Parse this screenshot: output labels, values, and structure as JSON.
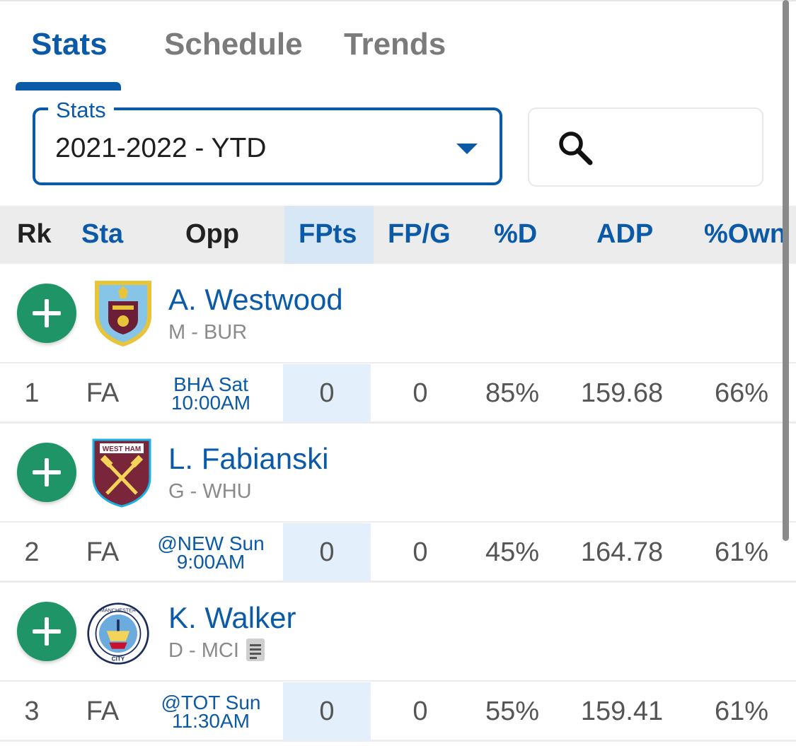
{
  "tabs": [
    {
      "label": "Stats",
      "active": true
    },
    {
      "label": "Schedule",
      "active": false
    },
    {
      "label": "Trends",
      "active": false
    }
  ],
  "filter": {
    "legend": "Stats",
    "value": "2021-2022 - YTD"
  },
  "search": {
    "icon": "search-icon"
  },
  "columns": [
    "Rk",
    "Sta",
    "Opp",
    "FPts",
    "FP/G",
    "%D",
    "ADP",
    "%Own"
  ],
  "colors": {
    "accent": "#0a5aa8",
    "add": "#1e9467",
    "highlight": "#e3effa"
  },
  "players": [
    {
      "name": "A. Westwood",
      "pos": "M",
      "team": "BUR",
      "rank": "1",
      "status": "FA",
      "opp_line1": "BHA Sat",
      "opp_line2": "10:00AM",
      "fpts": "0",
      "fpg": "0",
      "pct_d": "85%",
      "adp": "159.68",
      "pct_own": "66%"
    },
    {
      "name": "L. Fabianski",
      "pos": "G",
      "team": "WHU",
      "rank": "2",
      "status": "FA",
      "opp_line1": "@NEW Sun",
      "opp_line2": "9:00AM",
      "fpts": "0",
      "fpg": "0",
      "pct_d": "45%",
      "adp": "164.78",
      "pct_own": "61%"
    },
    {
      "name": "K. Walker",
      "pos": "D",
      "team": "MCI",
      "rank": "3",
      "status": "FA",
      "opp_line1": "@TOT Sun",
      "opp_line2": "11:30AM",
      "fpts": "0",
      "fpg": "0",
      "pct_d": "55%",
      "adp": "159.41",
      "pct_own": "61%",
      "has_note": true
    }
  ]
}
